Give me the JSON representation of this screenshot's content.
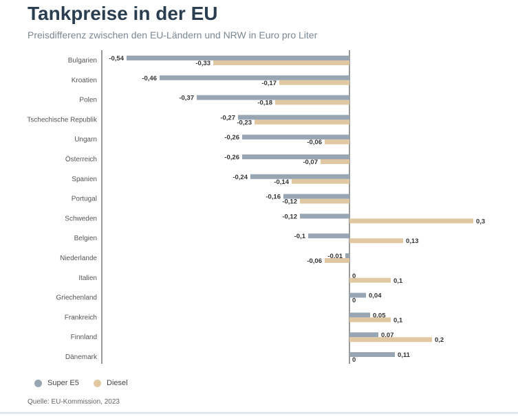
{
  "header": {
    "title": "Tankpreise in der EU",
    "subtitle": "Preisdifferenz zwischen den EU-Ländern und NRW in Euro pro Liter"
  },
  "legend": {
    "super_label": "Super E5",
    "diesel_label": "Diesel"
  },
  "footer": {
    "source": "Quelle: EU-Kommission, 2023"
  },
  "colors": {
    "super": "#98a5b3",
    "diesel": "#e0c9a2",
    "axis": "#333333",
    "label": "#555555",
    "value": "#333333"
  },
  "chart_data": {
    "type": "bar",
    "orientation": "horizontal",
    "categories": [
      "Bulgarien",
      "Kroatien",
      "Polen",
      "Tschechische Republik",
      "Ungarn",
      "Österreich",
      "Spanien",
      "Portugal",
      "Schweden",
      "Belgien",
      "Niederlande",
      "Italien",
      "Griechenland",
      "Frankreich",
      "Finnland",
      "Dänemark"
    ],
    "series": [
      {
        "name": "Super E5",
        "values": [
          -0.54,
          -0.46,
          -0.37,
          -0.27,
          -0.26,
          -0.26,
          -0.24,
          -0.16,
          -0.12,
          -0.1,
          -0.01,
          0,
          0.04,
          0.05,
          0.07,
          0.11
        ],
        "labels": [
          "-0,54",
          "-0,46",
          "-0,37",
          "-0,27",
          "-0,26",
          "-0,26",
          "-0,24",
          "-0,16",
          "-0,12",
          "-0,1",
          "-0,01",
          "0",
          "0,04",
          "0,05",
          "0,07",
          "0,11"
        ]
      },
      {
        "name": "Diesel",
        "values": [
          -0.33,
          -0.17,
          -0.18,
          -0.23,
          -0.06,
          -0.07,
          -0.14,
          -0.12,
          0.3,
          0.13,
          -0.06,
          0.1,
          0,
          0.1,
          0.2,
          0
        ],
        "labels": [
          "-0,33",
          "-0,17",
          "-0,18",
          "-0,23",
          "-0,06",
          "-0,07",
          "-0,14",
          "-0,12",
          "0,3",
          "0,13",
          "-0,06",
          "0,1",
          "0",
          "0,1",
          "0,2",
          "0"
        ]
      }
    ],
    "title": "Tankpreise in der EU",
    "subtitle": "Preisdifferenz zwischen den EU-Ländern und NRW in Euro pro Liter",
    "xlim": [
      -0.6,
      0.6
    ],
    "grid": false,
    "legend_position": "bottom-left"
  }
}
